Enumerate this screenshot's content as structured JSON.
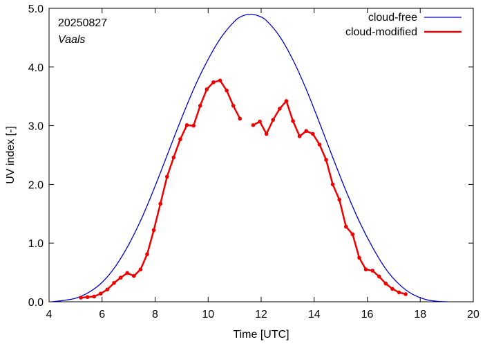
{
  "chart_data": {
    "type": "line",
    "title": "",
    "annotations": {
      "date": "20250827",
      "location": "Vaals"
    },
    "xlabel": "Time  [UTC]",
    "ylabel": "UV index  [-]",
    "xlim": [
      4,
      20
    ],
    "ylim": [
      0,
      5
    ],
    "xticks": [
      4,
      6,
      8,
      10,
      12,
      14,
      16,
      18,
      20
    ],
    "xtick_labels": [
      "4",
      "6",
      "8",
      "10",
      "12",
      "14",
      "16",
      "18",
      "20"
    ],
    "yticks": [
      0,
      1,
      2,
      3,
      4,
      5
    ],
    "ytick_labels": [
      "0.0",
      "1.0",
      "2.0",
      "3.0",
      "4.0",
      "5.0"
    ],
    "grid": false,
    "legend_position": "top-right",
    "series": [
      {
        "name": "cloud-free",
        "color": "#0000cc",
        "markers": false,
        "peak": 4.9,
        "peak_time": 11.6,
        "x": [
          4.1,
          4.5,
          5.0,
          5.5,
          6.0,
          6.5,
          7.0,
          7.5,
          8.0,
          8.5,
          9.0,
          9.5,
          10.0,
          10.5,
          11.0,
          11.3,
          11.6,
          11.9,
          12.2,
          12.7,
          13.2,
          13.7,
          14.2,
          14.7,
          15.2,
          15.7,
          16.2,
          16.7,
          17.2,
          17.7,
          18.2,
          18.6,
          19.0
        ],
        "y": [
          0.0,
          0.02,
          0.06,
          0.16,
          0.33,
          0.6,
          0.97,
          1.43,
          1.97,
          2.55,
          3.13,
          3.67,
          4.13,
          4.51,
          4.78,
          4.87,
          4.9,
          4.87,
          4.79,
          4.52,
          4.12,
          3.62,
          3.05,
          2.46,
          1.89,
          1.37,
          0.93,
          0.56,
          0.3,
          0.13,
          0.04,
          0.01,
          0.0
        ]
      },
      {
        "name": "cloud-modified",
        "color": "#ee0000",
        "markers": true,
        "segments": [
          {
            "x": [
              5.2,
              5.45,
              5.7,
              5.95,
              6.2,
              6.45,
              6.7,
              6.95,
              7.2,
              7.45,
              7.7,
              7.95,
              8.2,
              8.45,
              8.7,
              8.95,
              9.2,
              9.45,
              9.7,
              9.95,
              10.2,
              10.45,
              10.7,
              10.95,
              11.2
            ],
            "y": [
              0.07,
              0.08,
              0.09,
              0.14,
              0.21,
              0.32,
              0.41,
              0.49,
              0.44,
              0.55,
              0.81,
              1.22,
              1.67,
              2.13,
              2.46,
              2.77,
              3.01,
              3.0,
              3.34,
              3.62,
              3.74,
              3.77,
              3.6,
              3.34,
              3.12
            ]
          },
          {
            "x": [
              11.7,
              11.95,
              12.2,
              12.45,
              12.7,
              12.95,
              13.2,
              13.45,
              13.7,
              13.95,
              14.2,
              14.45,
              14.7,
              14.95,
              15.2,
              15.45,
              15.7,
              15.95,
              16.2,
              16.45,
              16.7,
              16.95,
              17.2,
              17.45
            ],
            "y": [
              3.01,
              3.07,
              2.86,
              3.1,
              3.29,
              3.42,
              3.08,
              2.82,
              2.91,
              2.86,
              2.68,
              2.42,
              2.0,
              1.74,
              1.28,
              1.15,
              0.75,
              0.55,
              0.53,
              0.43,
              0.31,
              0.22,
              0.16,
              0.13
            ]
          }
        ]
      }
    ]
  }
}
